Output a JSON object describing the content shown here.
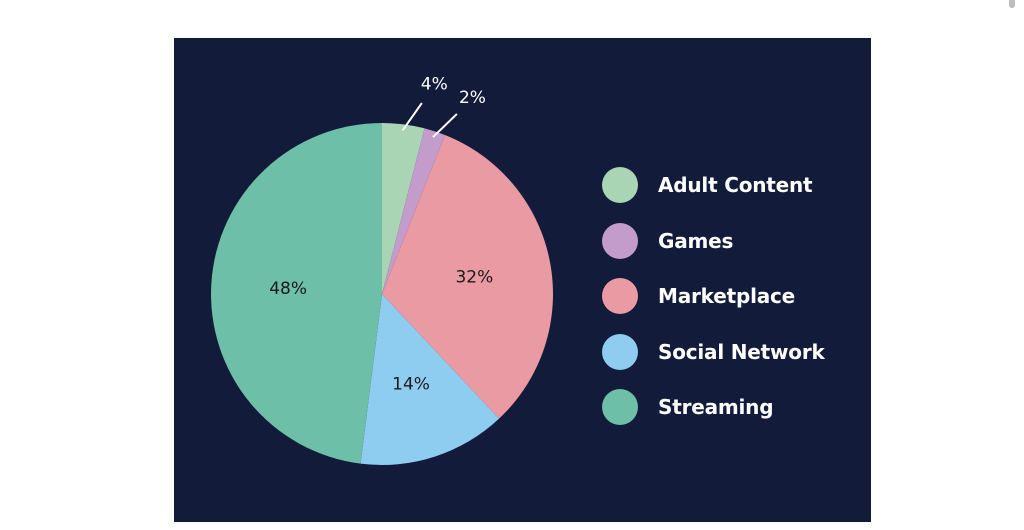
{
  "chart_data": {
    "type": "pie",
    "title": "",
    "categories": [
      "Adult Content",
      "Games",
      "Marketplace",
      "Social Network",
      "Streaming"
    ],
    "values": [
      4,
      2,
      32,
      14,
      48
    ],
    "labels": [
      "4%",
      "2%",
      "32%",
      "14%",
      "48%"
    ],
    "colors": [
      "#a9d5b5",
      "#c49ccb",
      "#e99aa3",
      "#8fcdf0",
      "#6dbfa8"
    ],
    "legend_position": "right",
    "background": "#131b3b"
  }
}
